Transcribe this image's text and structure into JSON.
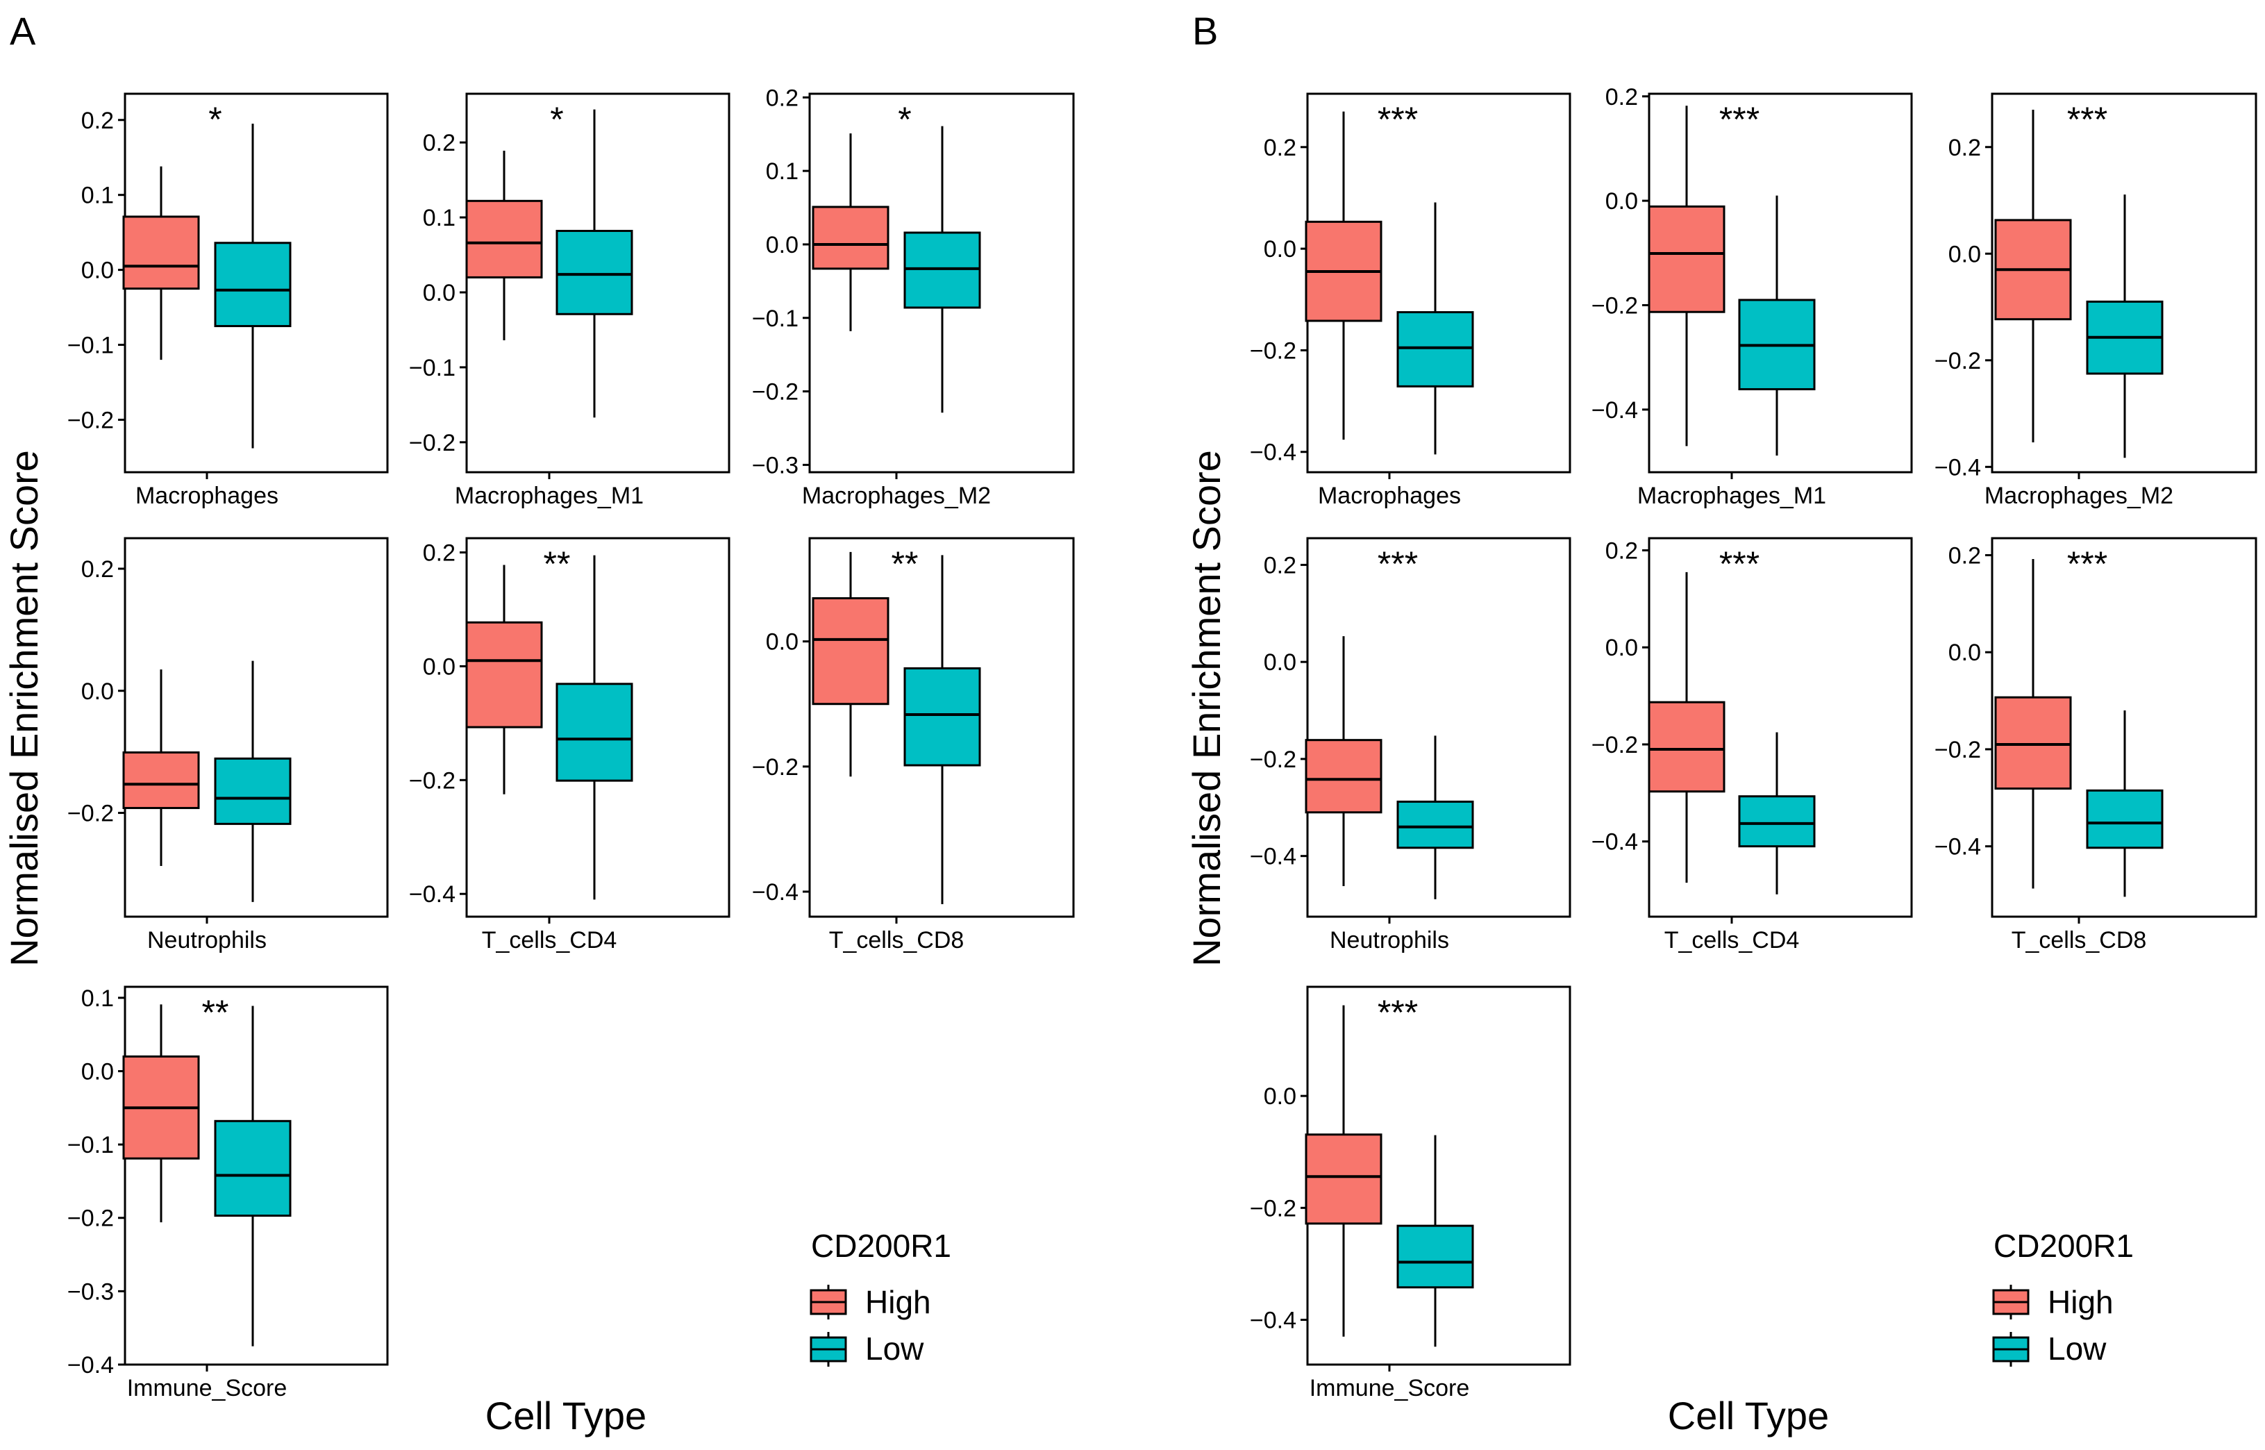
{
  "figure": {
    "group_variable": "CD200R1",
    "colors": {
      "High": "#F8766D",
      "Low": "#00BFC4"
    }
  },
  "chart_data": [
    {
      "panel_label": "A",
      "type": "boxplot",
      "ylabel": "Normalised Enrichment Score",
      "xlabel": "Cell Type",
      "legend": {
        "title": "CD200R1",
        "entries": [
          "High",
          "Low"
        ],
        "placement": "bottom-right"
      },
      "facets": [
        {
          "category": "Macrophages",
          "significance": "*",
          "ylim": [
            -0.27,
            0.235
          ],
          "yticks": [
            -0.2,
            -0.1,
            0.0,
            0.1,
            0.2
          ],
          "yticklabels": [
            "−0.2",
            "−0.1",
            "0.0",
            "0.1",
            "0.2"
          ],
          "series": [
            {
              "name": "High",
              "stats": {
                "min": -0.12,
                "q1": -0.025,
                "median": 0.005,
                "q3": 0.071,
                "max": 0.138
              }
            },
            {
              "name": "Low",
              "stats": {
                "min": -0.238,
                "q1": -0.075,
                "median": -0.027,
                "q3": 0.036,
                "max": 0.195
              }
            }
          ]
        },
        {
          "category": "Macrophages_M1",
          "significance": "*",
          "ylim": [
            -0.24,
            0.265
          ],
          "yticks": [
            -0.2,
            -0.1,
            0.0,
            0.1,
            0.2
          ],
          "yticklabels": [
            "−0.2",
            "−0.1",
            "0.0",
            "0.1",
            "0.2"
          ],
          "series": [
            {
              "name": "High",
              "stats": {
                "min": -0.064,
                "q1": 0.02,
                "median": 0.066,
                "q3": 0.122,
                "max": 0.189
              }
            },
            {
              "name": "Low",
              "stats": {
                "min": -0.167,
                "q1": -0.029,
                "median": 0.024,
                "q3": 0.082,
                "max": 0.244
              }
            }
          ]
        },
        {
          "category": "Macrophages_M2",
          "significance": "*",
          "ylim": [
            -0.31,
            0.205
          ],
          "yticks": [
            -0.3,
            -0.2,
            -0.1,
            0.0,
            0.1,
            0.2
          ],
          "yticklabels": [
            "−0.3",
            "−0.2",
            "−0.1",
            "0.0",
            "0.1",
            "0.2"
          ],
          "series": [
            {
              "name": "High",
              "stats": {
                "min": -0.118,
                "q1": -0.033,
                "median": 0.0,
                "q3": 0.051,
                "max": 0.151
              }
            },
            {
              "name": "Low",
              "stats": {
                "min": -0.229,
                "q1": -0.086,
                "median": -0.033,
                "q3": 0.016,
                "max": 0.161
              }
            }
          ]
        },
        {
          "category": "Neutrophils",
          "significance": "",
          "ylim": [
            -0.37,
            0.25
          ],
          "yticks": [
            -0.2,
            0.0,
            0.2
          ],
          "yticklabels": [
            "−0.2",
            "0.0",
            "0.2"
          ],
          "series": [
            {
              "name": "High",
              "stats": {
                "min": -0.287,
                "q1": -0.192,
                "median": -0.153,
                "q3": -0.101,
                "max": 0.035
              }
            },
            {
              "name": "Low",
              "stats": {
                "min": -0.346,
                "q1": -0.218,
                "median": -0.176,
                "q3": -0.111,
                "max": 0.049
              }
            }
          ]
        },
        {
          "category": "T_cells_CD4",
          "significance": "**",
          "ylim": [
            -0.44,
            0.225
          ],
          "yticks": [
            -0.4,
            -0.2,
            0.0,
            0.2
          ],
          "yticklabels": [
            "−0.4",
            "−0.2",
            "0.0",
            "0.2"
          ],
          "series": [
            {
              "name": "High",
              "stats": {
                "min": -0.225,
                "q1": -0.107,
                "median": 0.01,
                "q3": 0.077,
                "max": 0.178
              }
            },
            {
              "name": "Low",
              "stats": {
                "min": -0.41,
                "q1": -0.201,
                "median": -0.128,
                "q3": -0.031,
                "max": 0.195
              }
            }
          ]
        },
        {
          "category": "T_cells_CD8",
          "significance": "**",
          "ylim": [
            -0.44,
            0.165
          ],
          "yticks": [
            -0.4,
            -0.2,
            0.0
          ],
          "yticklabels": [
            "−0.4",
            "−0.2",
            "0.0"
          ],
          "series": [
            {
              "name": "High",
              "stats": {
                "min": -0.216,
                "q1": -0.1,
                "median": 0.003,
                "q3": 0.069,
                "max": 0.143
              }
            },
            {
              "name": "Low",
              "stats": {
                "min": -0.42,
                "q1": -0.198,
                "median": -0.117,
                "q3": -0.043,
                "max": 0.138
              }
            }
          ]
        },
        {
          "category": "Immune_Score",
          "significance": "**",
          "ylim": [
            -0.4,
            0.115
          ],
          "yticks": [
            -0.4,
            -0.3,
            -0.2,
            -0.1,
            0.0,
            0.1
          ],
          "yticklabels": [
            "−0.4",
            "−0.3",
            "−0.2",
            "−0.1",
            "0.0",
            "0.1"
          ],
          "series": [
            {
              "name": "High",
              "stats": {
                "min": -0.206,
                "q1": -0.119,
                "median": -0.05,
                "q3": 0.02,
                "max": 0.091
              }
            },
            {
              "name": "Low",
              "stats": {
                "min": -0.375,
                "q1": -0.197,
                "median": -0.142,
                "q3": -0.068,
                "max": 0.089
              }
            }
          ]
        }
      ]
    },
    {
      "panel_label": "B",
      "type": "boxplot",
      "ylabel": "Normalised Enrichment Score",
      "xlabel": "Cell Type",
      "legend": {
        "title": "CD200R1",
        "entries": [
          "High",
          "Low"
        ],
        "placement": "bottom-right"
      },
      "facets": [
        {
          "category": "Macrophages",
          "significance": "***",
          "ylim": [
            -0.44,
            0.305
          ],
          "yticks": [
            -0.4,
            -0.2,
            0.0,
            0.2
          ],
          "yticklabels": [
            "−0.4",
            "−0.2",
            "0.0",
            "0.2"
          ],
          "series": [
            {
              "name": "High",
              "stats": {
                "min": -0.376,
                "q1": -0.142,
                "median": -0.045,
                "q3": 0.053,
                "max": 0.27
              }
            },
            {
              "name": "Low",
              "stats": {
                "min": -0.405,
                "q1": -0.271,
                "median": -0.195,
                "q3": -0.125,
                "max": 0.091
              }
            }
          ]
        },
        {
          "category": "Macrophages_M1",
          "significance": "***",
          "ylim": [
            -0.52,
            0.205
          ],
          "yticks": [
            -0.4,
            -0.2,
            0.0,
            0.2
          ],
          "yticklabels": [
            "−0.4",
            "−0.2",
            "0.0",
            "0.2"
          ],
          "series": [
            {
              "name": "High",
              "stats": {
                "min": -0.47,
                "q1": -0.213,
                "median": -0.101,
                "q3": -0.011,
                "max": 0.182
              }
            },
            {
              "name": "Low",
              "stats": {
                "min": -0.488,
                "q1": -0.361,
                "median": -0.277,
                "q3": -0.19,
                "max": 0.01
              }
            }
          ]
        },
        {
          "category": "Macrophages_M2",
          "significance": "***",
          "ylim": [
            -0.41,
            0.3
          ],
          "yticks": [
            -0.4,
            -0.2,
            0.0,
            0.2
          ],
          "yticklabels": [
            "−0.4",
            "−0.2",
            "0.0",
            "0.2"
          ],
          "series": [
            {
              "name": "High",
              "stats": {
                "min": -0.354,
                "q1": -0.123,
                "median": -0.03,
                "q3": 0.063,
                "max": 0.27
              }
            },
            {
              "name": "Low",
              "stats": {
                "min": -0.383,
                "q1": -0.225,
                "median": -0.157,
                "q3": -0.09,
                "max": 0.111
              }
            }
          ]
        },
        {
          "category": "Neutrophils",
          "significance": "***",
          "ylim": [
            -0.525,
            0.255
          ],
          "yticks": [
            -0.4,
            -0.2,
            0.0,
            0.2
          ],
          "yticklabels": [
            "−0.4",
            "−0.2",
            "0.0",
            "0.2"
          ],
          "series": [
            {
              "name": "High",
              "stats": {
                "min": -0.462,
                "q1": -0.31,
                "median": -0.242,
                "q3": -0.161,
                "max": 0.053
              }
            },
            {
              "name": "Low",
              "stats": {
                "min": -0.489,
                "q1": -0.383,
                "median": -0.34,
                "q3": -0.288,
                "max": -0.152
              }
            }
          ]
        },
        {
          "category": "T_cells_CD4",
          "significance": "***",
          "ylim": [
            -0.555,
            0.225
          ],
          "yticks": [
            -0.4,
            -0.2,
            0.0,
            0.2
          ],
          "yticklabels": [
            "−0.4",
            "−0.2",
            "0.0",
            "0.2"
          ],
          "series": [
            {
              "name": "High",
              "stats": {
                "min": -0.485,
                "q1": -0.297,
                "median": -0.21,
                "q3": -0.113,
                "max": 0.155
              }
            },
            {
              "name": "Low",
              "stats": {
                "min": -0.509,
                "q1": -0.41,
                "median": -0.363,
                "q3": -0.307,
                "max": -0.175
              }
            }
          ]
        },
        {
          "category": "T_cells_CD8",
          "significance": "***",
          "ylim": [
            -0.545,
            0.235
          ],
          "yticks": [
            -0.4,
            -0.2,
            0.0,
            0.2
          ],
          "yticklabels": [
            "−0.4",
            "−0.2",
            "0.0",
            "0.2"
          ],
          "series": [
            {
              "name": "High",
              "stats": {
                "min": -0.487,
                "q1": -0.281,
                "median": -0.19,
                "q3": -0.093,
                "max": 0.192
              }
            },
            {
              "name": "Low",
              "stats": {
                "min": -0.504,
                "q1": -0.403,
                "median": -0.352,
                "q3": -0.285,
                "max": -0.12
              }
            }
          ]
        },
        {
          "category": "Immune_Score",
          "significance": "***",
          "ylim": [
            -0.48,
            0.195
          ],
          "yticks": [
            -0.4,
            -0.2,
            0.0
          ],
          "yticklabels": [
            "−0.4",
            "−0.2",
            "0.0"
          ],
          "series": [
            {
              "name": "High",
              "stats": {
                "min": -0.43,
                "q1": -0.228,
                "median": -0.144,
                "q3": -0.069,
                "max": 0.162
              }
            },
            {
              "name": "Low",
              "stats": {
                "min": -0.448,
                "q1": -0.342,
                "median": -0.297,
                "q3": -0.232,
                "max": -0.07
              }
            }
          ]
        }
      ]
    }
  ]
}
